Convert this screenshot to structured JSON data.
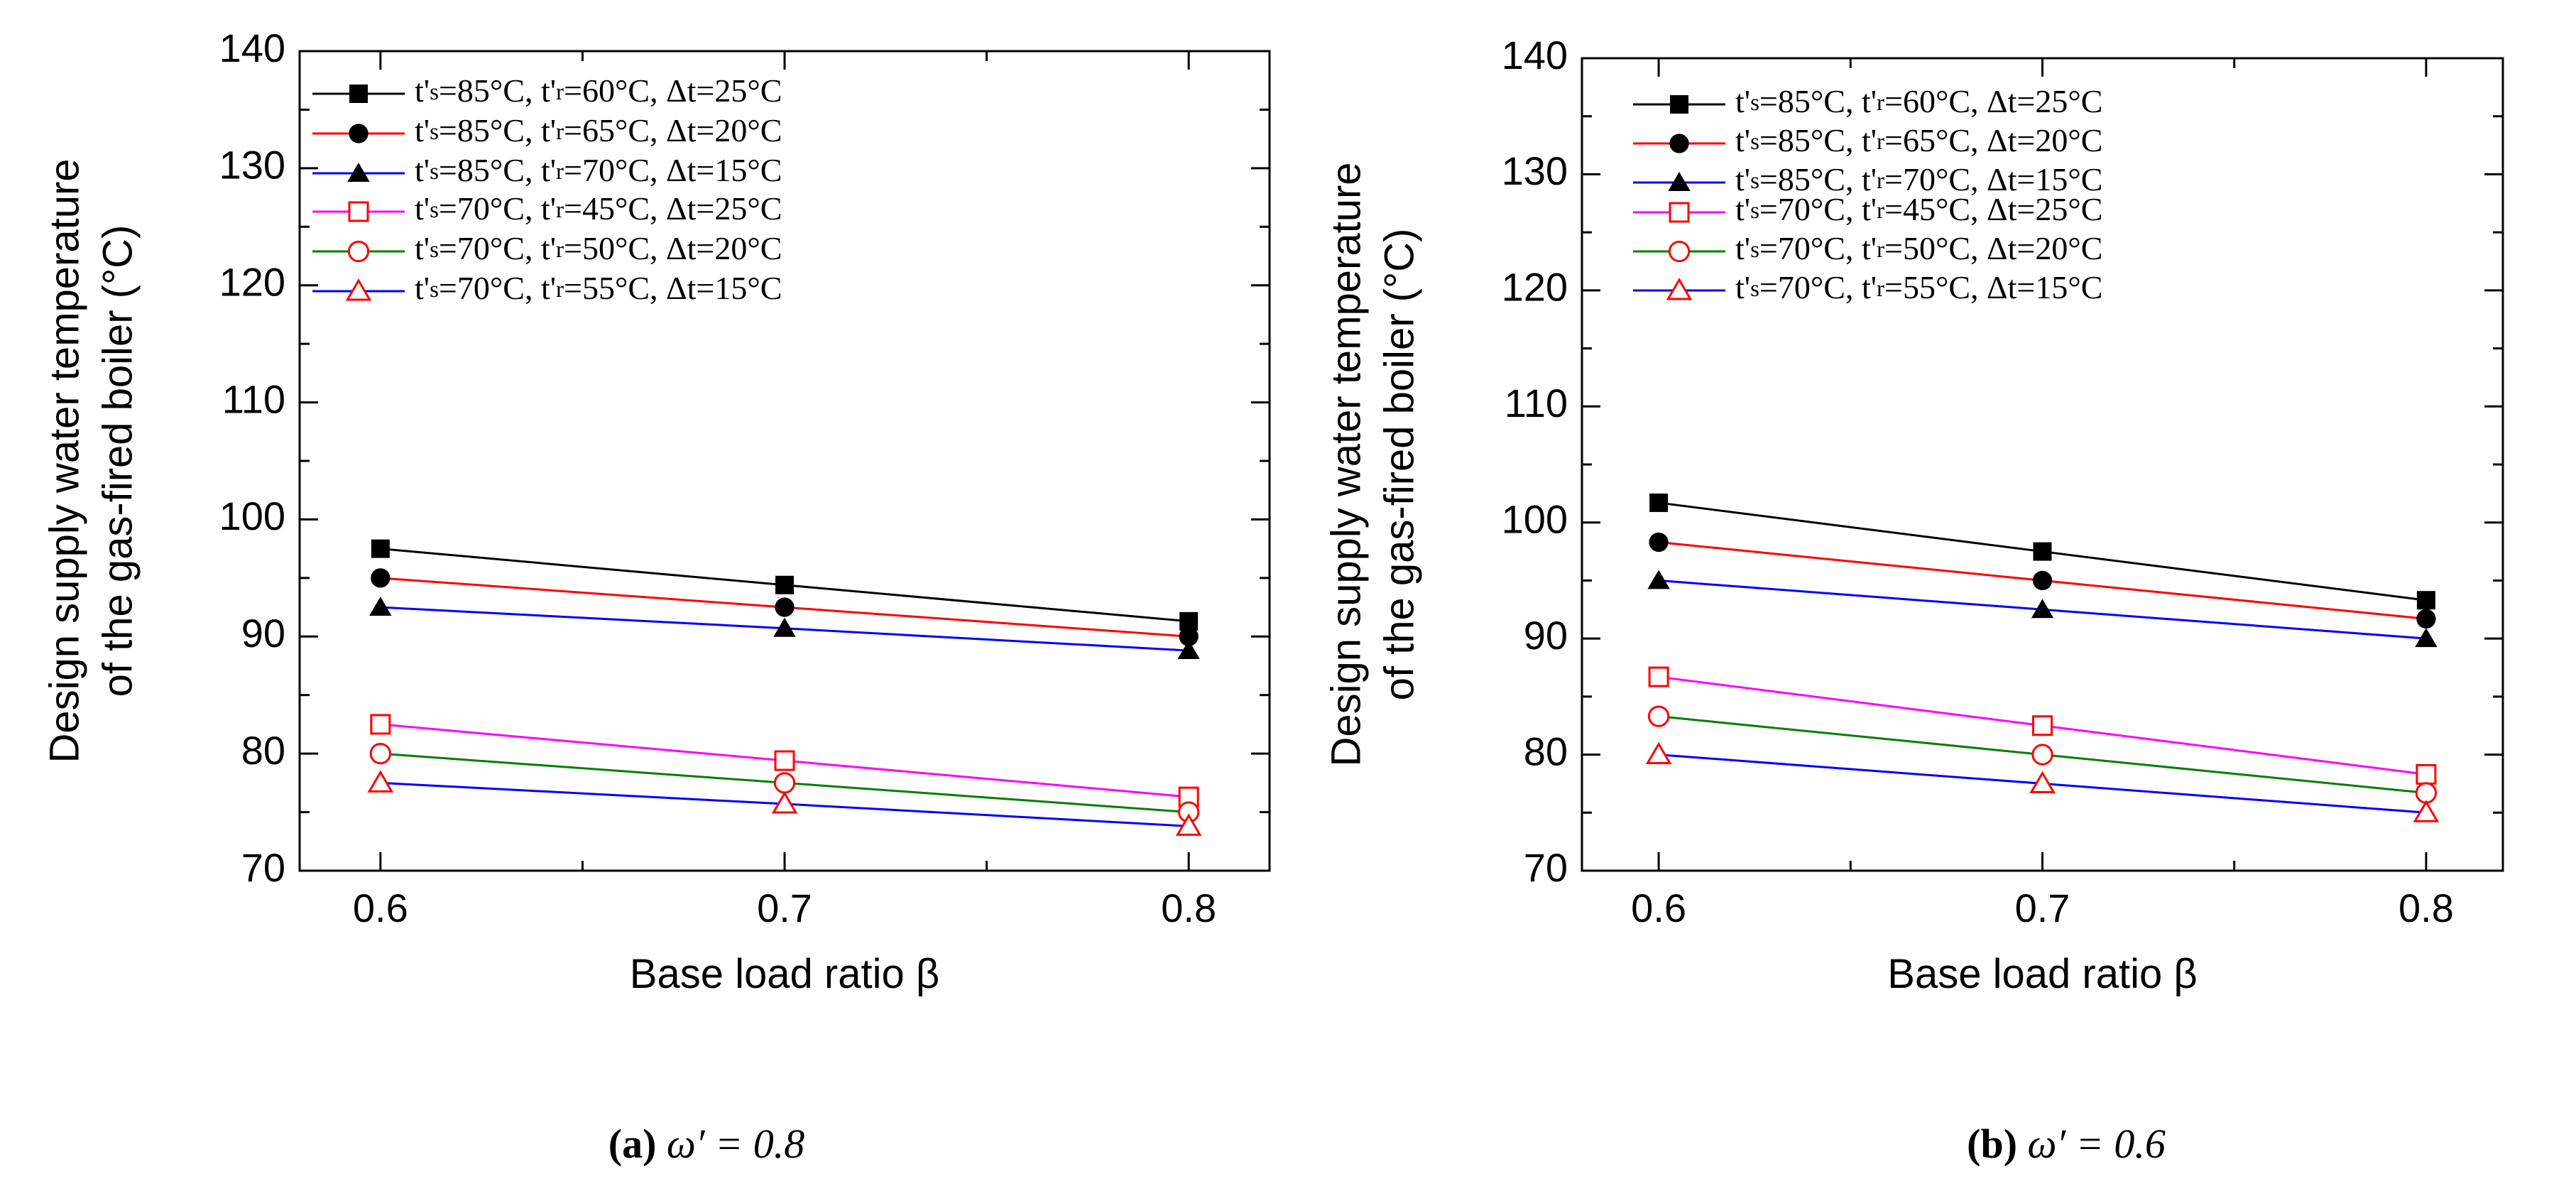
{
  "figure": {
    "captions": [
      {
        "letter": "(a)",
        "rest": " ω′ = 0.8"
      },
      {
        "letter": "(b)",
        "rest": " ω′ = 0.6"
      }
    ]
  },
  "chart_data": [
    {
      "type": "line",
      "panel": "a",
      "title": "",
      "xlabel": "Base load ratio β",
      "ylabel_lines": [
        "Design supply water temperature",
        "of the gas-fired boiler (°C)"
      ],
      "x": [
        0.6,
        0.7,
        0.8
      ],
      "x_ticks": [
        "0.6",
        "0.7",
        "0.8"
      ],
      "xlim": [
        0.58,
        0.82
      ],
      "ylim": [
        70,
        140
      ],
      "y_ticks": [
        "70",
        "80",
        "90",
        "100",
        "110",
        "120",
        "130",
        "140"
      ],
      "legend_position": "top-left",
      "series": [
        {
          "name": "t's=85°C, t'r=60°C, Δt=25°C",
          "values": [
            97.5,
            94.4,
            91.3
          ],
          "line_color": "#000000",
          "marker": "square",
          "filled": true,
          "marker_color": "#000000"
        },
        {
          "name": "t's=85°C, t'r=65°C, Δt=20°C",
          "values": [
            95.0,
            92.5,
            90.0
          ],
          "line_color": "#ff0000",
          "marker": "circle",
          "filled": true,
          "marker_color": "#000000"
        },
        {
          "name": "t's=85°C, t'r=70°C, Δt=15°C",
          "values": [
            92.5,
            90.7,
            88.8
          ],
          "line_color": "#0000ff",
          "marker": "triangle",
          "filled": true,
          "marker_color": "#000000"
        },
        {
          "name": "t's=70°C, t'r=45°C, Δt=25°C",
          "values": [
            82.5,
            79.4,
            76.3
          ],
          "line_color": "#ff00ff",
          "marker": "square",
          "filled": false,
          "marker_color": "#ff0000"
        },
        {
          "name": "t's=70°C, t'r=50°C, Δt=20°C",
          "values": [
            80.0,
            77.5,
            75.0
          ],
          "line_color": "#008000",
          "marker": "circle",
          "filled": false,
          "marker_color": "#ff0000"
        },
        {
          "name": "t's=70°C, t'r=55°C, Δt=15°C",
          "values": [
            77.5,
            75.7,
            73.8
          ],
          "line_color": "#0000ff",
          "marker": "triangle",
          "filled": false,
          "marker_color": "#ff0000"
        }
      ]
    },
    {
      "type": "line",
      "panel": "b",
      "title": "",
      "xlabel": "Base load ratio β",
      "ylabel_lines": [
        "Design supply water temperature",
        "of the gas-fired boiler (°C)"
      ],
      "x": [
        0.6,
        0.7,
        0.8
      ],
      "x_ticks": [
        "0.6",
        "0.7",
        "0.8"
      ],
      "xlim": [
        0.58,
        0.82
      ],
      "ylim": [
        70,
        140
      ],
      "y_ticks": [
        "70",
        "80",
        "90",
        "100",
        "110",
        "120",
        "130",
        "140"
      ],
      "legend_position": "top-left",
      "series": [
        {
          "name": "t's=85°C, t'r=60°C, Δt=25°C",
          "values": [
            101.7,
            97.5,
            93.3
          ],
          "line_color": "#000000",
          "marker": "square",
          "filled": true,
          "marker_color": "#000000"
        },
        {
          "name": "t's=85°C, t'r=65°C, Δt=20°C",
          "values": [
            98.3,
            95.0,
            91.7
          ],
          "line_color": "#ff0000",
          "marker": "circle",
          "filled": true,
          "marker_color": "#000000"
        },
        {
          "name": "t's=85°C, t'r=70°C, Δt=15°C",
          "values": [
            95.0,
            92.5,
            90.0
          ],
          "line_color": "#0000ff",
          "marker": "triangle",
          "filled": true,
          "marker_color": "#000000"
        },
        {
          "name": "t's=70°C, t'r=45°C, Δt=25°C",
          "values": [
            86.7,
            82.5,
            78.3
          ],
          "line_color": "#ff00ff",
          "marker": "square",
          "filled": false,
          "marker_color": "#ff0000"
        },
        {
          "name": "t's=70°C, t'r=50°C, Δt=20°C",
          "values": [
            83.3,
            80.0,
            76.7
          ],
          "line_color": "#008000",
          "marker": "circle",
          "filled": false,
          "marker_color": "#ff0000"
        },
        {
          "name": "t's=70°C, t'r=55°C, Δt=15°C",
          "values": [
            80.0,
            77.5,
            75.0
          ],
          "line_color": "#0000ff",
          "marker": "triangle",
          "filled": false,
          "marker_color": "#ff0000"
        }
      ]
    }
  ]
}
